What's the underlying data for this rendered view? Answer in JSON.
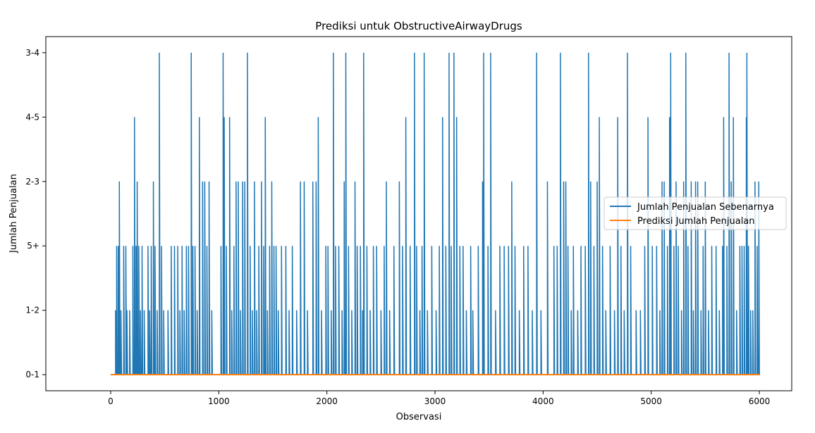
{
  "chart_data": {
    "type": "line",
    "title": "Prediksi untuk ObstructiveAirwayDrugs",
    "xlabel": "Observasi",
    "ylabel": "Jumlah Penjualan",
    "xlim": [
      -600,
      6300
    ],
    "ylim": [
      -0.25,
      5.25
    ],
    "x_ticks": [
      0,
      1000,
      2000,
      3000,
      4000,
      5000,
      6000
    ],
    "y_categories": [
      "0-1",
      "1-2",
      "5+",
      "2-3",
      "4-5",
      "3-4"
    ],
    "grid": false,
    "legend_position": "center-right",
    "series": [
      {
        "name": "Jumlah Penjualan Sebenarnya",
        "color": "#1f77b4",
        "x_range": [
          0,
          6000
        ],
        "spikes": [
          [
            45,
            1
          ],
          [
            55,
            2
          ],
          [
            70,
            2
          ],
          [
            80,
            3
          ],
          [
            95,
            1
          ],
          [
            120,
            2
          ],
          [
            140,
            2
          ],
          [
            150,
            1
          ],
          [
            175,
            1
          ],
          [
            205,
            2
          ],
          [
            220,
            4
          ],
          [
            235,
            2
          ],
          [
            245,
            3
          ],
          [
            260,
            2
          ],
          [
            275,
            1
          ],
          [
            290,
            2
          ],
          [
            310,
            1
          ],
          [
            345,
            2
          ],
          [
            360,
            1
          ],
          [
            375,
            2
          ],
          [
            395,
            3
          ],
          [
            410,
            2
          ],
          [
            430,
            1
          ],
          [
            450,
            5
          ],
          [
            470,
            2
          ],
          [
            490,
            1
          ],
          [
            530,
            1
          ],
          [
            560,
            2
          ],
          [
            590,
            2
          ],
          [
            620,
            2
          ],
          [
            640,
            1
          ],
          [
            660,
            2
          ],
          [
            680,
            1
          ],
          [
            700,
            2
          ],
          [
            720,
            2
          ],
          [
            745,
            5
          ],
          [
            760,
            2
          ],
          [
            780,
            2
          ],
          [
            800,
            1
          ],
          [
            820,
            4
          ],
          [
            850,
            3
          ],
          [
            870,
            3
          ],
          [
            890,
            2
          ],
          [
            910,
            3
          ],
          [
            935,
            1
          ],
          [
            1020,
            2
          ],
          [
            1040,
            5
          ],
          [
            1050,
            4
          ],
          [
            1070,
            2
          ],
          [
            1100,
            4
          ],
          [
            1120,
            1
          ],
          [
            1140,
            2
          ],
          [
            1160,
            3
          ],
          [
            1180,
            3
          ],
          [
            1200,
            1
          ],
          [
            1220,
            3
          ],
          [
            1240,
            3
          ],
          [
            1265,
            5
          ],
          [
            1290,
            2
          ],
          [
            1310,
            1
          ],
          [
            1330,
            3
          ],
          [
            1350,
            1
          ],
          [
            1370,
            2
          ],
          [
            1395,
            3
          ],
          [
            1415,
            2
          ],
          [
            1430,
            4
          ],
          [
            1450,
            1
          ],
          [
            1470,
            2
          ],
          [
            1490,
            3
          ],
          [
            1510,
            2
          ],
          [
            1530,
            2
          ],
          [
            1550,
            1
          ],
          [
            1580,
            2
          ],
          [
            1620,
            2
          ],
          [
            1650,
            1
          ],
          [
            1680,
            2
          ],
          [
            1720,
            1
          ],
          [
            1755,
            3
          ],
          [
            1790,
            3
          ],
          [
            1820,
            1
          ],
          [
            1870,
            3
          ],
          [
            1900,
            3
          ],
          [
            1920,
            4
          ],
          [
            1950,
            1
          ],
          [
            1990,
            2
          ],
          [
            2010,
            2
          ],
          [
            2040,
            1
          ],
          [
            2060,
            5
          ],
          [
            2080,
            2
          ],
          [
            2110,
            2
          ],
          [
            2140,
            1
          ],
          [
            2160,
            3
          ],
          [
            2175,
            5
          ],
          [
            2200,
            2
          ],
          [
            2230,
            1
          ],
          [
            2260,
            3
          ],
          [
            2280,
            2
          ],
          [
            2310,
            2
          ],
          [
            2330,
            1
          ],
          [
            2340,
            5
          ],
          [
            2370,
            2
          ],
          [
            2400,
            1
          ],
          [
            2430,
            2
          ],
          [
            2460,
            2
          ],
          [
            2500,
            1
          ],
          [
            2530,
            2
          ],
          [
            2550,
            3
          ],
          [
            2580,
            1
          ],
          [
            2620,
            2
          ],
          [
            2670,
            3
          ],
          [
            2700,
            2
          ],
          [
            2730,
            4
          ],
          [
            2770,
            2
          ],
          [
            2810,
            5
          ],
          [
            2830,
            2
          ],
          [
            2860,
            1
          ],
          [
            2880,
            2
          ],
          [
            2900,
            5
          ],
          [
            2930,
            1
          ],
          [
            2970,
            2
          ],
          [
            3010,
            1
          ],
          [
            3040,
            2
          ],
          [
            3070,
            4
          ],
          [
            3100,
            2
          ],
          [
            3130,
            5
          ],
          [
            3150,
            2
          ],
          [
            3175,
            5
          ],
          [
            3200,
            4
          ],
          [
            3230,
            2
          ],
          [
            3260,
            2
          ],
          [
            3290,
            1
          ],
          [
            3330,
            2
          ],
          [
            3350,
            1
          ],
          [
            3400,
            2
          ],
          [
            3440,
            3
          ],
          [
            3450,
            5
          ],
          [
            3490,
            2
          ],
          [
            3515,
            5
          ],
          [
            3560,
            1
          ],
          [
            3600,
            2
          ],
          [
            3640,
            2
          ],
          [
            3680,
            2
          ],
          [
            3710,
            3
          ],
          [
            3740,
            2
          ],
          [
            3780,
            1
          ],
          [
            3820,
            2
          ],
          [
            3860,
            2
          ],
          [
            3900,
            1
          ],
          [
            3940,
            5
          ],
          [
            3980,
            1
          ],
          [
            4040,
            3
          ],
          [
            4100,
            2
          ],
          [
            4130,
            2
          ],
          [
            4160,
            5
          ],
          [
            4190,
            3
          ],
          [
            4210,
            3
          ],
          [
            4230,
            2
          ],
          [
            4260,
            1
          ],
          [
            4280,
            2
          ],
          [
            4320,
            1
          ],
          [
            4350,
            2
          ],
          [
            4390,
            2
          ],
          [
            4420,
            5
          ],
          [
            4440,
            3
          ],
          [
            4470,
            2
          ],
          [
            4500,
            3
          ],
          [
            4520,
            4
          ],
          [
            4550,
            2
          ],
          [
            4580,
            1
          ],
          [
            4620,
            2
          ],
          [
            4660,
            1
          ],
          [
            4690,
            4
          ],
          [
            4720,
            2
          ],
          [
            4750,
            1
          ],
          [
            4780,
            5
          ],
          [
            4810,
            2
          ],
          [
            4860,
            1
          ],
          [
            4900,
            1
          ],
          [
            4940,
            2
          ],
          [
            4970,
            4
          ],
          [
            5010,
            2
          ],
          [
            5050,
            2
          ],
          [
            5080,
            1
          ],
          [
            5100,
            3
          ],
          [
            5120,
            3
          ],
          [
            5150,
            2
          ],
          [
            5170,
            4
          ],
          [
            5180,
            5
          ],
          [
            5210,
            2
          ],
          [
            5230,
            3
          ],
          [
            5250,
            2
          ],
          [
            5280,
            1
          ],
          [
            5300,
            3
          ],
          [
            5320,
            5
          ],
          [
            5340,
            2
          ],
          [
            5370,
            3
          ],
          [
            5390,
            1
          ],
          [
            5410,
            3
          ],
          [
            5430,
            3
          ],
          [
            5460,
            1
          ],
          [
            5480,
            2
          ],
          [
            5500,
            3
          ],
          [
            5530,
            1
          ],
          [
            5560,
            2
          ],
          [
            5600,
            2
          ],
          [
            5630,
            1
          ],
          [
            5660,
            2
          ],
          [
            5670,
            4
          ],
          [
            5700,
            2
          ],
          [
            5720,
            5
          ],
          [
            5740,
            3
          ],
          [
            5760,
            4
          ],
          [
            5790,
            1
          ],
          [
            5820,
            2
          ],
          [
            5840,
            2
          ],
          [
            5860,
            2
          ],
          [
            5880,
            4
          ],
          [
            5885,
            5
          ],
          [
            5900,
            2
          ],
          [
            5920,
            1
          ],
          [
            5940,
            1
          ],
          [
            5960,
            3
          ],
          [
            5980,
            2
          ],
          [
            5995,
            3
          ]
        ]
      },
      {
        "name": "Prediksi Jumlah Penjualan",
        "color": "#ff7f0e",
        "x": [
          0,
          6000
        ],
        "values": [
          0,
          0
        ]
      }
    ]
  }
}
